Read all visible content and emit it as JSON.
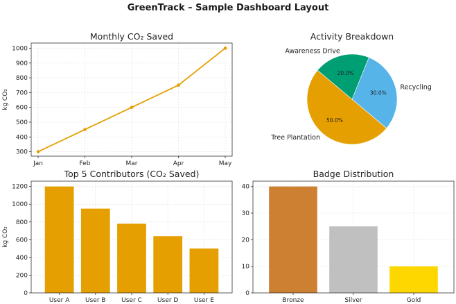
{
  "page": {
    "title": "GreenTrack – Sample Dashboard Layout"
  },
  "chart_data": [
    {
      "id": "line",
      "type": "line",
      "title": "Monthly CO₂ Saved",
      "xlabel": "",
      "ylabel": "kg CO₂",
      "categories": [
        "Jan",
        "Feb",
        "Mar",
        "Apr",
        "May"
      ],
      "values": [
        300,
        450,
        600,
        750,
        1000
      ],
      "yticks": [
        300,
        400,
        500,
        600,
        700,
        800,
        900,
        1000
      ],
      "ylim": [
        270,
        1035
      ],
      "grid": true,
      "color": "#E69F00"
    },
    {
      "id": "pie",
      "type": "pie",
      "title": "Activity Breakdown",
      "slices": [
        {
          "label": "Tree Plantation",
          "value": 50.0,
          "pct_label": "50.0%",
          "color": "#E69F00"
        },
        {
          "label": "Recycling",
          "value": 30.0,
          "pct_label": "30.0%",
          "color": "#56B4E9"
        },
        {
          "label": "Awareness Drive",
          "value": 20.0,
          "pct_label": "20.0%",
          "color": "#009E73"
        }
      ],
      "start_angle": 140
    },
    {
      "id": "contributors",
      "type": "bar",
      "title": "Top 5 Contributors (CO₂ Saved)",
      "xlabel": "",
      "ylabel": "kg CO₂",
      "categories": [
        "User A",
        "User B",
        "User C",
        "User D",
        "User E"
      ],
      "values": [
        1200,
        950,
        780,
        640,
        500
      ],
      "yticks": [
        0,
        200,
        400,
        600,
        800,
        1000,
        1200
      ],
      "ylim": [
        0,
        1260
      ],
      "grid": true,
      "color": "#E69F00"
    },
    {
      "id": "badges",
      "type": "bar",
      "title": "Badge Distribution",
      "xlabel": "",
      "ylabel": "",
      "categories": [
        "Bronze",
        "Silver",
        "Gold"
      ],
      "values": [
        40,
        25,
        10
      ],
      "yticks": [
        0,
        10,
        20,
        30,
        40
      ],
      "ylim": [
        0,
        42
      ],
      "grid": true,
      "colors": [
        "#CD7F32",
        "#C0C0C0",
        "#FFD700"
      ]
    }
  ]
}
